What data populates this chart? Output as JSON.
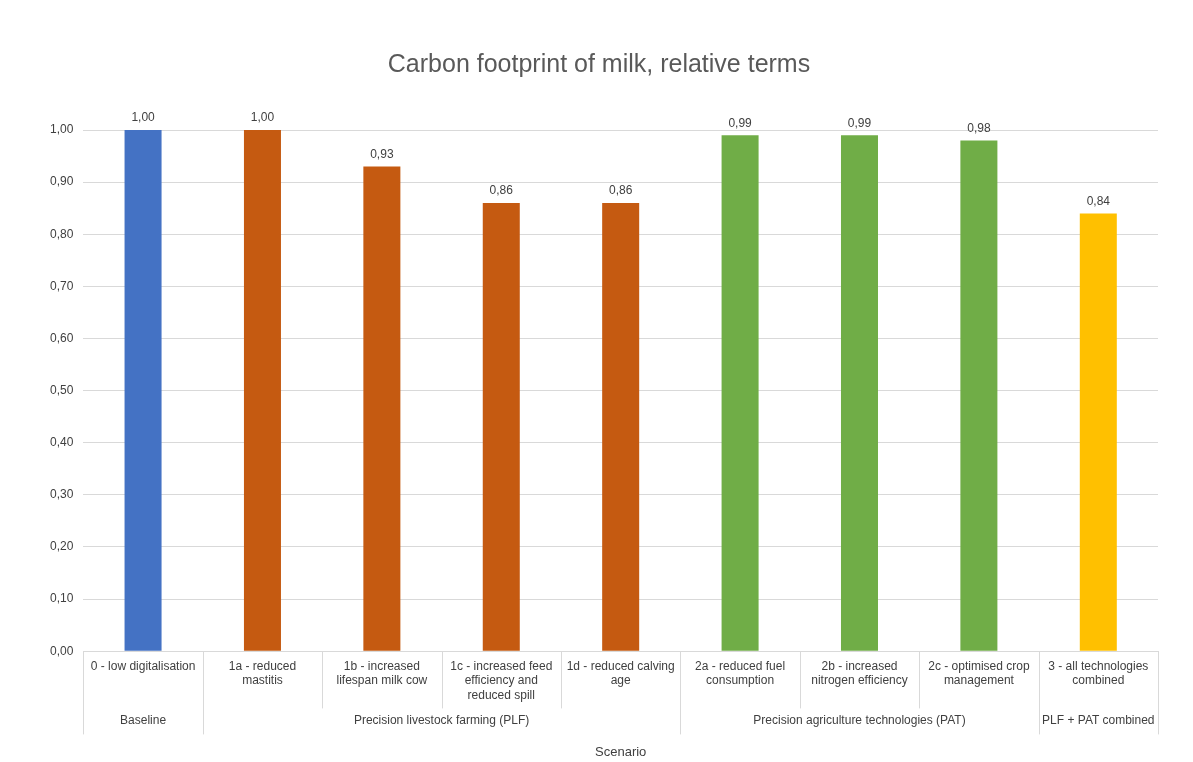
{
  "chart_data": {
    "type": "bar",
    "title": "Carbon footprint of milk, relative terms",
    "xlabel": "Scenario",
    "categories": [
      "0 - low digitalisation",
      "1a - reduced mastitis",
      "1b - increased lifespan milk cow",
      "1c - increased feed efficiency and reduced spill",
      "1d - reduced calving age",
      "2a - reduced fuel consumption",
      "2b - increased nitrogen efficiency",
      "2c - optimised crop management",
      "3 - all technologies combined"
    ],
    "values": [
      1.0,
      1.0,
      0.93,
      0.86,
      0.86,
      0.99,
      0.99,
      0.98,
      0.84
    ],
    "value_labels": [
      "1,00",
      "1,00",
      "0,93",
      "0,86",
      "0,86",
      "0,99",
      "0,99",
      "0,98",
      "0,84"
    ],
    "colors": [
      "#4472c4",
      "#c55a11",
      "#c55a11",
      "#c55a11",
      "#c55a11",
      "#70ad47",
      "#70ad47",
      "#70ad47",
      "#ffc000"
    ],
    "ylim": [
      0,
      1
    ],
    "yticks": [
      {
        "value": 0,
        "label": "0,00"
      },
      {
        "value": 0.1,
        "label": "0,10"
      },
      {
        "value": 0.2,
        "label": "0,20"
      },
      {
        "value": 0.3,
        "label": "0,30"
      },
      {
        "value": 0.4,
        "label": "0,40"
      },
      {
        "value": 0.5,
        "label": "0,50"
      },
      {
        "value": 0.6,
        "label": "0,60"
      },
      {
        "value": 0.7,
        "label": "0,70"
      },
      {
        "value": 0.8,
        "label": "0,80"
      },
      {
        "value": 0.9,
        "label": "0,90"
      },
      {
        "value": 1,
        "label": "1,00"
      }
    ],
    "grid": "y",
    "legend": false,
    "annotations": [
      "Baseline",
      "Precision livestock farming (PLF)",
      "Precision agriculture technologies (PAT)",
      "PLF + PAT combined"
    ]
  }
}
